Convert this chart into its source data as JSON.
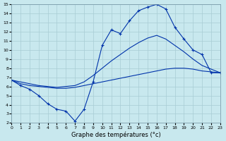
{
  "xlabel": "Graphe des températures (°c)",
  "xlim": [
    0,
    23
  ],
  "ylim": [
    2,
    15
  ],
  "xticks": [
    0,
    1,
    2,
    3,
    4,
    5,
    6,
    7,
    8,
    9,
    10,
    11,
    12,
    13,
    14,
    15,
    16,
    17,
    18,
    19,
    20,
    21,
    22,
    23
  ],
  "yticks": [
    2,
    3,
    4,
    5,
    6,
    7,
    8,
    9,
    10,
    11,
    12,
    13,
    14,
    15
  ],
  "background_color": "#c8e8ee",
  "grid_color": "#a8ccd4",
  "line_color": "#0033aa",
  "curve1_x": [
    0,
    1,
    2,
    3,
    4,
    5,
    6,
    7,
    8,
    9,
    10,
    11,
    12,
    13,
    14,
    15,
    16,
    17,
    18,
    19,
    20,
    21,
    22,
    23
  ],
  "curve1_y": [
    6.7,
    6.1,
    5.7,
    5.0,
    4.1,
    3.5,
    3.3,
    2.2,
    3.5,
    6.5,
    10.5,
    12.2,
    11.8,
    13.2,
    14.3,
    14.7,
    15.0,
    14.5,
    12.5,
    11.2,
    10.0,
    9.5,
    7.5,
    7.5
  ],
  "curve2_x": [
    0,
    1,
    2,
    3,
    4,
    5,
    6,
    7,
    8,
    9,
    10,
    11,
    12,
    13,
    14,
    15,
    16,
    17,
    18,
    19,
    20,
    21,
    22,
    23
  ],
  "curve2_y": [
    6.7,
    6.3,
    6.1,
    6.0,
    5.9,
    5.8,
    5.8,
    5.9,
    6.1,
    6.3,
    6.5,
    6.7,
    6.9,
    7.1,
    7.3,
    7.5,
    7.7,
    7.9,
    8.0,
    8.0,
    7.9,
    7.7,
    7.6,
    7.5
  ],
  "curve3_x": [
    0,
    1,
    2,
    3,
    4,
    5,
    6,
    7,
    8,
    9,
    10,
    11,
    12,
    13,
    14,
    15,
    16,
    17,
    18,
    19,
    20,
    21,
    22,
    23
  ],
  "curve3_y": [
    6.7,
    6.5,
    6.3,
    6.1,
    6.0,
    5.9,
    6.0,
    6.1,
    6.5,
    7.2,
    8.0,
    8.8,
    9.5,
    10.2,
    10.8,
    11.3,
    11.6,
    11.2,
    10.5,
    9.8,
    9.0,
    8.3,
    7.9,
    7.5
  ]
}
